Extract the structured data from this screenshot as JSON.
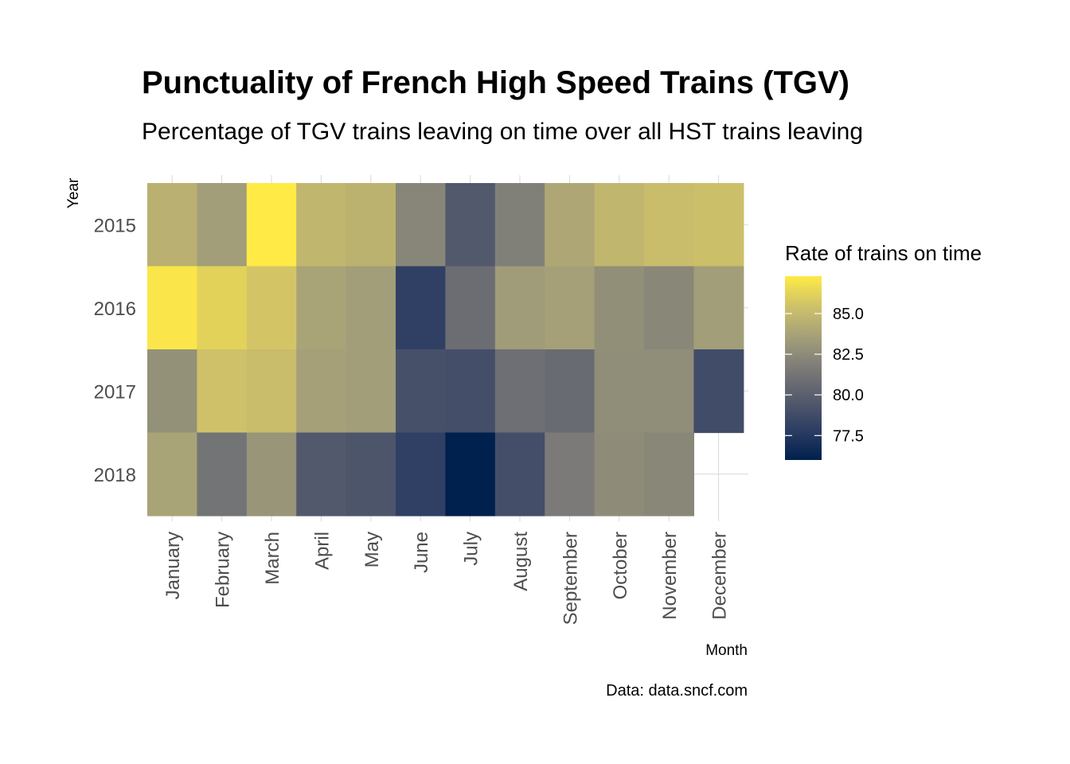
{
  "chart_data": {
    "type": "heatmap",
    "title": "Punctuality of French High Speed Trains (TGV)",
    "subtitle": "Percentage of TGV trains leaving on time over all HST trains leaving",
    "xlabel": "Month",
    "ylabel": "Year",
    "caption": "Data: data.sncf.com",
    "legend_title": "Rate of trains on time",
    "legend_placement": "right",
    "legend_ticks": [
      "85.0",
      "82.5",
      "80.0",
      "77.5"
    ],
    "legend_tick_values": [
      85.0,
      82.5,
      80.0,
      77.5
    ],
    "color_range": [
      76.0,
      87.3
    ],
    "color_scale": [
      "#00204d",
      "#2d3e63",
      "#575c6d",
      "#7c7b78",
      "#a39f79",
      "#cec169",
      "#ffea46"
    ],
    "x": [
      "January",
      "February",
      "March",
      "April",
      "May",
      "June",
      "July",
      "August",
      "September",
      "October",
      "November",
      "December"
    ],
    "y": [
      "2015",
      "2016",
      "2017",
      "2018"
    ],
    "grid": true,
    "values": [
      [
        84.5,
        83.5,
        87.3,
        84.8,
        84.6,
        82.2,
        79.6,
        81.9,
        84.0,
        84.8,
        85.2,
        85.3
      ],
      [
        87.1,
        86.2,
        85.6,
        83.8,
        83.5,
        78.0,
        80.8,
        83.4,
        83.6,
        82.7,
        82.3,
        83.5
      ],
      [
        82.8,
        85.4,
        85.2,
        83.6,
        83.5,
        79.0,
        78.9,
        80.9,
        80.7,
        82.6,
        82.6,
        78.8
      ],
      [
        83.8,
        81.2,
        83.0,
        79.6,
        79.3,
        78.0,
        76.0,
        78.9,
        81.6,
        82.5,
        82.3,
        null
      ]
    ]
  }
}
